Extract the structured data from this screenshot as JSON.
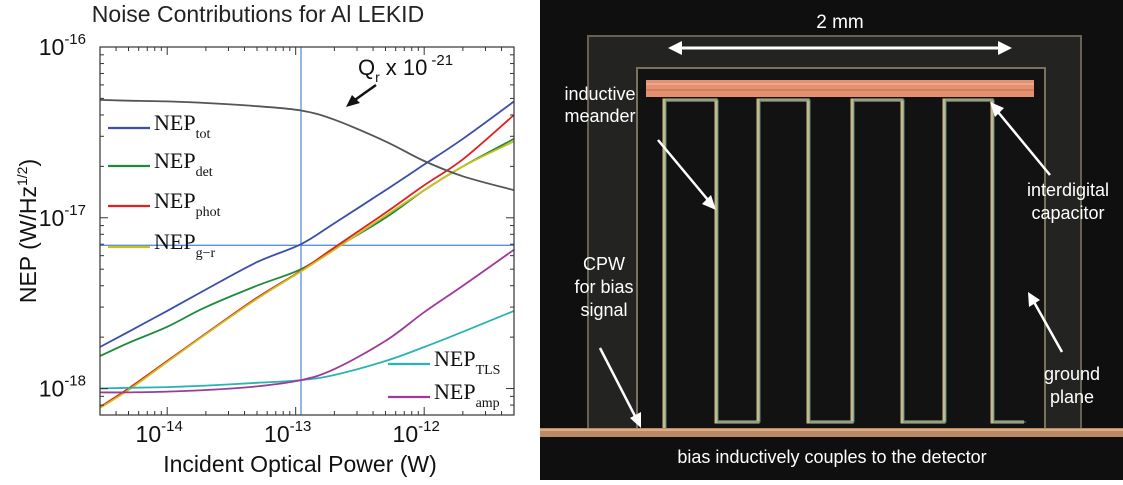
{
  "chart_data": {
    "type": "line",
    "title": "Noise Contributions for Al LEKID",
    "xlabel": "Incident Optical Power (W)",
    "ylabel": "NEP (W/Hz",
    "ylabel_sup": "1/2",
    "ylabel_end": ")",
    "xscale": "log",
    "yscale": "log",
    "xlim": [
      3e-15,
      5e-12
    ],
    "ylim": [
      7e-19,
      1e-16
    ],
    "x_ticks": [
      {
        "value": 1e-14,
        "base": "10",
        "exp": "-14"
      },
      {
        "value": 1e-13,
        "base": "10",
        "exp": "-13"
      },
      {
        "value": 1e-12,
        "base": "10",
        "exp": "-12"
      }
    ],
    "y_ticks": [
      {
        "value": 1e-18,
        "base": "10",
        "exp": "-18"
      },
      {
        "value": 1e-17,
        "base": "10",
        "exp": "-17"
      },
      {
        "value": 1e-16,
        "base": "10",
        "exp": "-16"
      }
    ],
    "x": [
      3e-15,
      5e-15,
      1e-14,
      2e-14,
      5e-14,
      1.1e-13,
      2e-13,
      5e-13,
      1e-12,
      2e-12,
      5e-12
    ],
    "series": [
      {
        "name": "NEP",
        "sub": "tot",
        "color": "#3b4fa8",
        "values": [
          1.75e-18,
          2.15e-18,
          2.85e-18,
          3.8e-18,
          5.5e-18,
          7e-18,
          9.3e-18,
          1.45e-17,
          2.05e-17,
          2.9e-17,
          4.8e-17
        ]
      },
      {
        "name": "NEP",
        "sub": "det",
        "color": "#1f8a3c",
        "values": [
          1.55e-18,
          1.85e-18,
          2.3e-18,
          3e-18,
          4e-18,
          5e-18,
          6.6e-18,
          1e-17,
          1.45e-17,
          2e-17,
          2.9e-17
        ]
      },
      {
        "name": "NEP",
        "sub": "phot",
        "color": "#e02020",
        "values": [
          7.8e-19,
          1e-18,
          1.45e-18,
          2.1e-18,
          3.4e-18,
          4.9e-18,
          6.7e-18,
          1.07e-17,
          1.55e-17,
          2.2e-17,
          4e-17
        ]
      },
      {
        "name": "NEP",
        "sub": "g−r",
        "color": "#c9c020",
        "values": [
          7.7e-19,
          9.8e-19,
          1.43e-18,
          2.08e-18,
          3.35e-18,
          4.85e-18,
          6.5e-18,
          1.03e-17,
          1.45e-17,
          2e-17,
          2.8e-17
        ]
      },
      {
        "name": "NEP",
        "sub": "TLS",
        "color": "#2ab3b3",
        "values": [
          1e-18,
          1.01e-18,
          1.02e-18,
          1.04e-18,
          1.08e-18,
          1.12e-18,
          1.2e-18,
          1.45e-18,
          1.75e-18,
          2.15e-18,
          2.85e-18
        ]
      },
      {
        "name": "NEP",
        "sub": "amp",
        "color": "#9e3a9a",
        "values": [
          9.5e-19,
          9.5e-19,
          9.6e-19,
          9.8e-19,
          1.03e-18,
          1.12e-18,
          1.3e-18,
          1.9e-18,
          2.8e-18,
          4e-18,
          6.5e-18
        ]
      },
      {
        "name": "",
        "sub": "",
        "color": "#555555",
        "values": [
          4.9e-17,
          4.85e-17,
          4.8e-17,
          4.7e-17,
          4.5e-17,
          4.25e-17,
          3.75e-17,
          2.8e-17,
          2.15e-17,
          1.75e-17,
          1.45e-17
        ]
      }
    ],
    "qr_label": {
      "base": "Q",
      "sub": "r",
      "mult": "x 10",
      "exp": "-21"
    },
    "reference_lines": {
      "x": 1.1e-13,
      "y": 6.9e-18,
      "color": "#5b8fd6"
    },
    "legend_position": "left"
  },
  "photo": {
    "dimension_label": "2 mm",
    "labels": {
      "inductive": "inductive",
      "meander": "meander",
      "interdigital": "interdigital",
      "capacitor": "capacitor",
      "cpw": "CPW",
      "for_bias": "for bias",
      "signal": "signal",
      "ground": "ground",
      "plane": "plane",
      "caption": "bias inductively couples to the detector"
    },
    "colors": {
      "background": "#111111",
      "metal": "#6b6452",
      "capacitor": "#e08a6a",
      "text": "#ffffff"
    }
  }
}
